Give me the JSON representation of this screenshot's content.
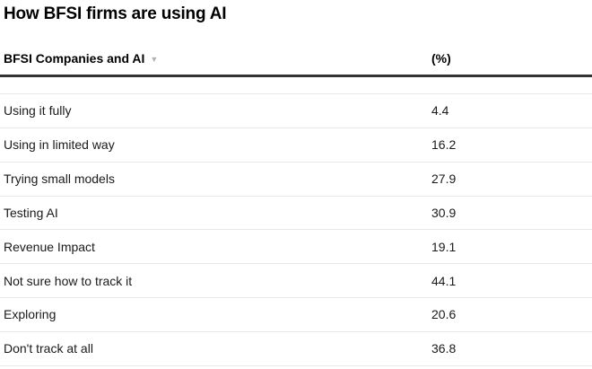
{
  "title": "How BFSI firms are using AI",
  "table": {
    "header": {
      "category_label": "BFSI Companies and AI",
      "value_label": "(%)"
    }
  },
  "icons": {
    "sort_descending": "▼"
  },
  "colors": {
    "background": "#ffffff",
    "title_text": "#000000",
    "row_text": "#1a1a1a",
    "sort_icon": "#b4b4b4",
    "header_rule": "#333333",
    "row_rule": "#e8e8e8"
  },
  "chart_data": {
    "type": "table",
    "title": "How BFSI firms are using AI",
    "columns": [
      "BFSI Companies and AI",
      "(%)"
    ],
    "categories": [
      "Using it fully",
      "Using in limited way",
      "Trying small models",
      "Testing AI",
      "Revenue Impact",
      "Not sure how to track it",
      "Exploring",
      "Don't track at all"
    ],
    "values": [
      4.4,
      16.2,
      27.9,
      30.9,
      19.1,
      44.1,
      20.6,
      36.8
    ]
  }
}
